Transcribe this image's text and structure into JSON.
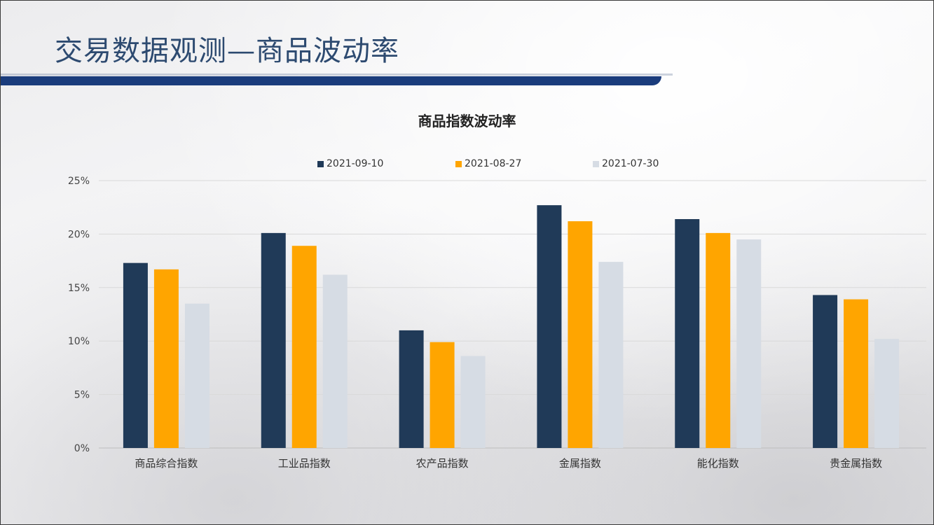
{
  "page": {
    "title": "交易数据观测—商品波动率"
  },
  "colors": {
    "accent": "#1a3c7c",
    "title": "#2d4a70"
  },
  "chart_data": {
    "type": "bar",
    "title": "商品指数波动率",
    "categories": [
      "商品综合指数",
      "工业品指数",
      "农产品指数",
      "金属指数",
      "能化指数",
      "贵金属指数"
    ],
    "series": [
      {
        "name": "2021-09-10",
        "color": "#203a58",
        "values": [
          17.3,
          20.1,
          11.0,
          22.7,
          21.4,
          14.3
        ]
      },
      {
        "name": "2021-08-27",
        "color": "#ffa500",
        "values": [
          16.7,
          18.9,
          9.9,
          21.2,
          20.1,
          13.9
        ]
      },
      {
        "name": "2021-07-30",
        "color": "#d6dce4",
        "values": [
          13.5,
          16.2,
          8.6,
          17.4,
          19.5,
          10.2
        ]
      }
    ],
    "yticks": [
      "0%",
      "5%",
      "10%",
      "15%",
      "20%",
      "25%"
    ],
    "ylim": [
      0,
      25
    ],
    "legend_position": "top",
    "grid": true
  }
}
